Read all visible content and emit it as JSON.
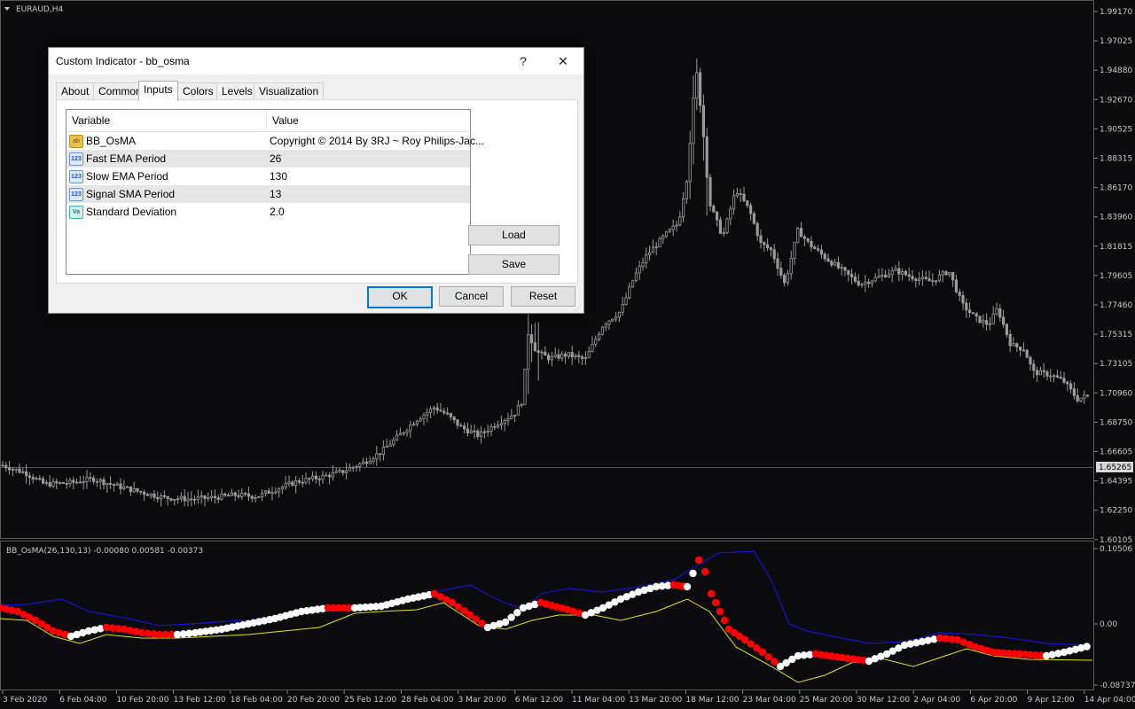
{
  "symbol_label": "EURAUD,H4",
  "indicator_label": "BB_OsMA(26,130,13) -0.00080 0.00581 -0.00373",
  "price_axis": [
    "1.99170",
    "1.97025",
    "1.94880",
    "1.92670",
    "1.90525",
    "1.88315",
    "1.86170",
    "1.83960",
    "1.81815",
    "1.79605",
    "1.77460",
    "1.75315",
    "1.73105",
    "1.70960",
    "1.68750",
    "1.66605",
    "1.64395",
    "1.62250",
    "1.60105"
  ],
  "current_price": "1.65265",
  "indicator_axis": [
    "0.10506",
    "0.00",
    "-0.08737"
  ],
  "time_axis": [
    "3 Feb 2020",
    "6 Feb 04:00",
    "10 Feb 20:00",
    "13 Feb 12:00",
    "18 Feb 04:00",
    "20 Feb 20:00",
    "25 Feb 12:00",
    "28 Feb 04:00",
    "3 Mar 20:00",
    "6 Mar 12:00",
    "11 Mar 04:00",
    "13 Mar 20:00",
    "18 Mar 12:00",
    "23 Mar 04:00",
    "25 Mar 20:00",
    "30 Mar 12:00",
    "2 Apr 04:00",
    "6 Apr 20:00",
    "9 Apr 12:00",
    "14 Apr 04:00"
  ],
  "colors": {
    "background": "#0b0b0d",
    "candles": "#9a9a9a",
    "osma_white": "#ffffff",
    "osma_red": "#ff0000",
    "band_blue": "#1212d0",
    "signal_yellow": "#e6e600"
  },
  "dialog": {
    "title": "Custom Indicator - bb_osma",
    "help_glyph": "?",
    "close_glyph": "✕",
    "tabs": [
      "About",
      "Common",
      "Inputs",
      "Colors",
      "Levels",
      "Visualization"
    ],
    "active_tab": "Inputs",
    "grid": {
      "header_variable": "Variable",
      "header_value": "Value",
      "rows": [
        {
          "icon": "ab",
          "icon_text": "ab",
          "variable": "BB_OsMA",
          "value": "Copyright © 2014 By 3RJ ~ Roy Philips-Jac..."
        },
        {
          "icon": "n123",
          "icon_text": "123",
          "variable": "Fast EMA Period",
          "value": "26"
        },
        {
          "icon": "n123",
          "icon_text": "123",
          "variable": "Slow EMA Period",
          "value": "130"
        },
        {
          "icon": "n123",
          "icon_text": "123",
          "variable": "Signal SMA Period",
          "value": "13"
        },
        {
          "icon": "dbl",
          "icon_text": "Va",
          "variable": "Standard Deviation",
          "value": "2.0"
        }
      ]
    },
    "load_label": "Load",
    "save_label": "Save",
    "ok_label": "OK",
    "cancel_label": "Cancel",
    "reset_label": "Reset"
  }
}
